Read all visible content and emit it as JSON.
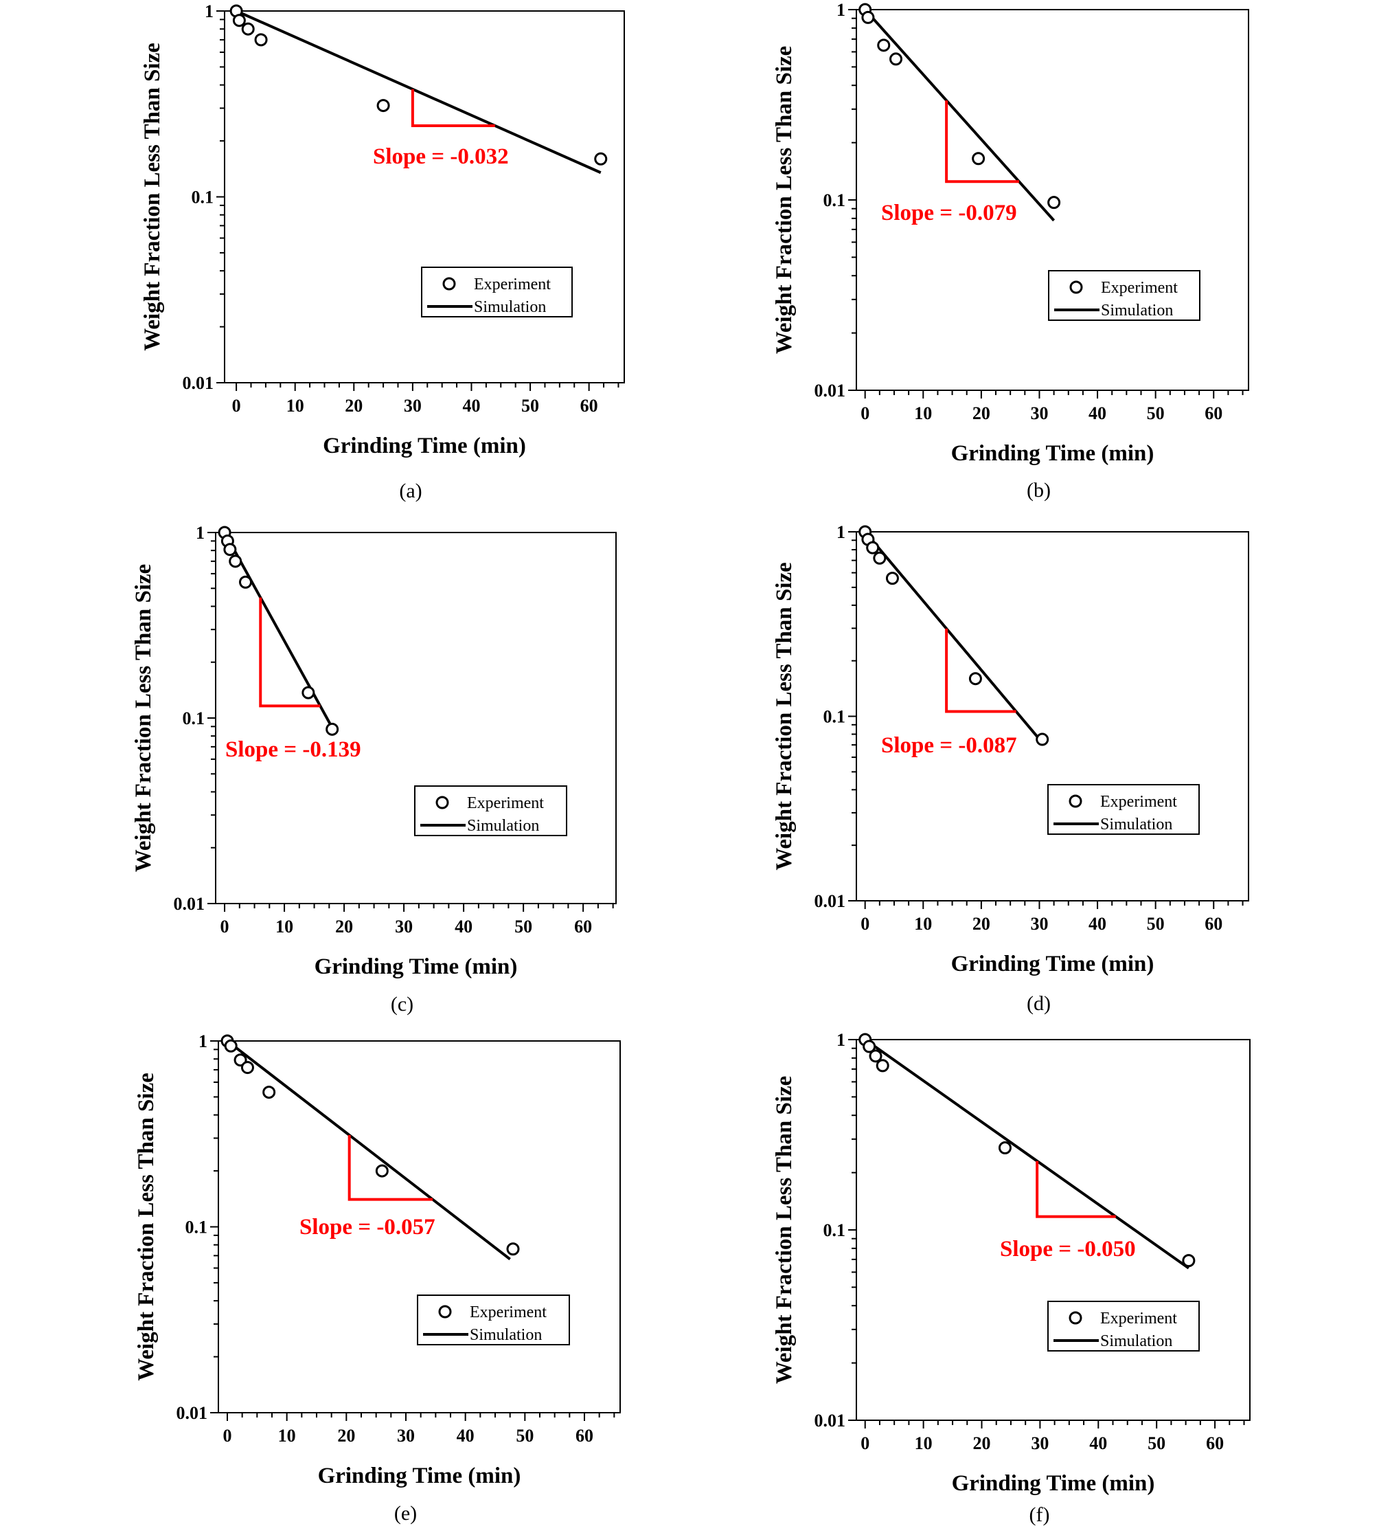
{
  "figure": {
    "panels": [
      {
        "caption": "(a)",
        "slope_label": "Slope = -0.032",
        "legend": {
          "experiment": "Experiment",
          "simulation": "Simulation"
        }
      },
      {
        "caption": "(b)",
        "slope_label": "Slope = -0.079",
        "legend": {
          "experiment": "Experiment",
          "simulation": "Simulation"
        }
      },
      {
        "caption": "(c)",
        "slope_label": "Slope = -0.139",
        "legend": {
          "experiment": "Experiment",
          "simulation": "Simulation"
        }
      },
      {
        "caption": "(d)",
        "slope_label": "Slope = -0.087",
        "legend": {
          "experiment": "Experiment",
          "simulation": "Simulation"
        }
      },
      {
        "caption": "(e)",
        "slope_label": "Slope = -0.057",
        "legend": {
          "experiment": "Experiment",
          "simulation": "Simulation"
        }
      },
      {
        "caption": "(f)",
        "slope_label": "Slope = -0.050",
        "legend": {
          "experiment": "Experiment",
          "simulation": "Simulation"
        }
      }
    ]
  },
  "colors": {
    "marker": "#000000",
    "simulation_line": "#000000",
    "slope_triangle": "#ff0000"
  },
  "chart_data": [
    {
      "type": "scatter",
      "title": "",
      "xlabel": "Grinding Time (min)",
      "ylabel": "Weight Fraction Less Than Size",
      "xlim": [
        -2,
        66
      ],
      "ylim": [
        0.01,
        1
      ],
      "y_scale": "log",
      "xticks": [
        0,
        10,
        20,
        30,
        40,
        50,
        60
      ],
      "yticks": [
        0.01,
        0.1,
        1
      ],
      "ytick_labels": [
        "0.01",
        "0.1",
        "1"
      ],
      "legend_position": "lower-right",
      "grid": false,
      "series": [
        {
          "name": "Experiment",
          "marker": "open-circle",
          "x": [
            0,
            0.5,
            2,
            4.2,
            25,
            62
          ],
          "y": [
            1.0,
            0.89,
            0.8,
            0.7,
            0.31,
            0.16
          ]
        },
        {
          "name": "Simulation",
          "style": "line",
          "x": [
            0,
            62
          ],
          "y": [
            1.0,
            0.135
          ]
        }
      ],
      "annotations": [
        {
          "text": "Slope = -0.032",
          "slope": -0.032
        }
      ]
    },
    {
      "type": "scatter",
      "title": "",
      "xlabel": "Grinding Time (min)",
      "ylabel": "Weight Fraction Less Than Size",
      "xlim": [
        -1.5,
        66
      ],
      "ylim": [
        0.01,
        1
      ],
      "y_scale": "log",
      "xticks": [
        0,
        10,
        20,
        30,
        40,
        50,
        60
      ],
      "yticks": [
        0.01,
        0.1,
        1
      ],
      "ytick_labels": [
        "0.01",
        "0.1",
        "1"
      ],
      "legend_position": "lower-right",
      "grid": false,
      "series": [
        {
          "name": "Experiment",
          "marker": "open-circle",
          "x": [
            0,
            0.5,
            3.2,
            5.3,
            19.5,
            32.5
          ],
          "y": [
            1.0,
            0.91,
            0.65,
            0.55,
            0.165,
            0.097
          ]
        },
        {
          "name": "Simulation",
          "style": "line",
          "x": [
            0,
            32.5
          ],
          "y": [
            1.0,
            0.078
          ]
        }
      ],
      "annotations": [
        {
          "text": "Slope = -0.079",
          "slope": -0.079
        }
      ]
    },
    {
      "type": "scatter",
      "title": "",
      "xlabel": "Grinding Time (min)",
      "ylabel": "Weight Fraction Less Than Size",
      "xlim": [
        -1.5,
        65.5
      ],
      "ylim": [
        0.01,
        1
      ],
      "y_scale": "log",
      "xticks": [
        0,
        10,
        20,
        30,
        40,
        50,
        60
      ],
      "yticks": [
        0.01,
        0.1,
        1
      ],
      "ytick_labels": [
        "0.01",
        "0.1",
        "1"
      ],
      "legend_position": "lower-right",
      "grid": false,
      "series": [
        {
          "name": "Experiment",
          "marker": "open-circle",
          "x": [
            0,
            0.5,
            0.9,
            1.8,
            3.5,
            14,
            18
          ],
          "y": [
            1.0,
            0.9,
            0.81,
            0.7,
            0.54,
            0.137,
            0.087
          ]
        },
        {
          "name": "Simulation",
          "style": "line",
          "x": [
            0,
            18.5
          ],
          "y": [
            1.0,
            0.083
          ]
        }
      ],
      "annotations": [
        {
          "text": "Slope = -0.139",
          "slope": -0.139
        }
      ]
    },
    {
      "type": "scatter",
      "title": "",
      "xlabel": "Grinding Time (min)",
      "ylabel": "Weight Fraction Less Than Size",
      "xlim": [
        -1.5,
        66
      ],
      "ylim": [
        0.01,
        1
      ],
      "y_scale": "log",
      "xticks": [
        0,
        10,
        20,
        30,
        40,
        50,
        60
      ],
      "yticks": [
        0.01,
        0.1,
        1
      ],
      "ytick_labels": [
        "0.01",
        "0.1",
        "1"
      ],
      "legend_position": "lower-right",
      "grid": false,
      "series": [
        {
          "name": "Experiment",
          "marker": "open-circle",
          "x": [
            0,
            0.5,
            1.3,
            2.5,
            4.7,
            19,
            30.5
          ],
          "y": [
            1.0,
            0.91,
            0.82,
            0.72,
            0.56,
            0.16,
            0.075
          ]
        },
        {
          "name": "Simulation",
          "style": "line",
          "x": [
            0,
            30.5
          ],
          "y": [
            1.0,
            0.072
          ]
        }
      ],
      "annotations": [
        {
          "text": "Slope = -0.087",
          "slope": -0.087
        }
      ]
    },
    {
      "type": "scatter",
      "title": "",
      "xlabel": "Grinding Time (min)",
      "ylabel": "Weight Fraction Less Than Size",
      "xlim": [
        -1.5,
        66
      ],
      "ylim": [
        0.01,
        1
      ],
      "y_scale": "log",
      "xticks": [
        0,
        10,
        20,
        30,
        40,
        50,
        60
      ],
      "yticks": [
        0.01,
        0.1,
        1
      ],
      "ytick_labels": [
        "0.01",
        "0.1",
        "1"
      ],
      "legend_position": "lower-right",
      "grid": false,
      "series": [
        {
          "name": "Experiment",
          "marker": "open-circle",
          "x": [
            0,
            0.6,
            2.2,
            3.4,
            7,
            26,
            48
          ],
          "y": [
            1.0,
            0.94,
            0.79,
            0.72,
            0.53,
            0.2,
            0.076
          ]
        },
        {
          "name": "Simulation",
          "style": "line",
          "x": [
            0,
            47.5
          ],
          "y": [
            1.0,
            0.067
          ]
        }
      ],
      "annotations": [
        {
          "text": "Slope = -0.057",
          "slope": -0.057
        }
      ]
    },
    {
      "type": "scatter",
      "title": "",
      "xlabel": "Grinding Time (min)",
      "ylabel": "Weight Fraction Less Than Size",
      "xlim": [
        -1.5,
        66
      ],
      "ylim": [
        0.01,
        1
      ],
      "y_scale": "log",
      "xticks": [
        0,
        10,
        20,
        30,
        40,
        50,
        60
      ],
      "yticks": [
        0.01,
        0.1,
        1
      ],
      "ytick_labels": [
        "0.01",
        "0.1",
        "1"
      ],
      "legend_position": "lower-right",
      "grid": false,
      "series": [
        {
          "name": "Experiment",
          "marker": "open-circle",
          "x": [
            0,
            0.7,
            1.8,
            3,
            24,
            55.5
          ],
          "y": [
            1.0,
            0.92,
            0.82,
            0.73,
            0.27,
            0.069
          ]
        },
        {
          "name": "Simulation",
          "style": "line",
          "x": [
            0,
            55.5
          ],
          "y": [
            1.0,
            0.063
          ]
        }
      ],
      "annotations": [
        {
          "text": "Slope = -0.050",
          "slope": -0.05
        }
      ]
    }
  ]
}
